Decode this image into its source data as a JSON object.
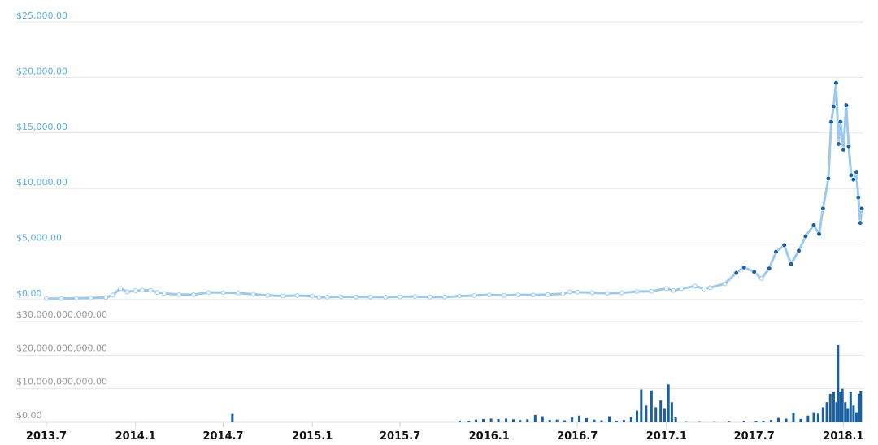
{
  "chart_data": [
    {
      "type": "line",
      "title": "",
      "xlabel": "",
      "ylabel": "",
      "ylim": [
        0,
        25000
      ],
      "grid": true,
      "y_tick_labels": [
        "$0.00",
        "$5,000.00",
        "$10,000.00",
        "$15,000.00",
        "$20,000.00",
        "$25,000.00"
      ],
      "y_ticks": [
        0,
        5000,
        10000,
        15000,
        20000,
        25000
      ],
      "line_color": "#9ec9ec",
      "marker_color": "#1a63a3",
      "points": [
        [
          "2013-07-01",
          90
        ],
        [
          "2013-08-01",
          100
        ],
        [
          "2013-09-01",
          130
        ],
        [
          "2013-10-01",
          150
        ],
        [
          "2013-11-01",
          200
        ],
        [
          "2013-11-15",
          420
        ],
        [
          "2013-12-01",
          1000
        ],
        [
          "2013-12-15",
          700
        ],
        [
          "2014-01-01",
          800
        ],
        [
          "2014-01-15",
          850
        ],
        [
          "2014-02-01",
          830
        ],
        [
          "2014-02-15",
          650
        ],
        [
          "2014-03-01",
          560
        ],
        [
          "2014-04-01",
          450
        ],
        [
          "2014-05-01",
          450
        ],
        [
          "2014-06-01",
          650
        ],
        [
          "2014-07-01",
          630
        ],
        [
          "2014-08-01",
          590
        ],
        [
          "2014-09-01",
          480
        ],
        [
          "2014-10-01",
          380
        ],
        [
          "2014-11-01",
          330
        ],
        [
          "2014-12-01",
          370
        ],
        [
          "2015-01-01",
          315
        ],
        [
          "2015-01-15",
          210
        ],
        [
          "2015-02-01",
          230
        ],
        [
          "2015-03-01",
          260
        ],
        [
          "2015-04-01",
          245
        ],
        [
          "2015-05-01",
          235
        ],
        [
          "2015-06-01",
          225
        ],
        [
          "2015-07-01",
          260
        ],
        [
          "2015-08-01",
          280
        ],
        [
          "2015-09-01",
          230
        ],
        [
          "2015-10-01",
          240
        ],
        [
          "2015-11-01",
          320
        ],
        [
          "2015-12-01",
          370
        ],
        [
          "2016-01-01",
          430
        ],
        [
          "2016-02-01",
          370
        ],
        [
          "2016-03-01",
          430
        ],
        [
          "2016-04-01",
          420
        ],
        [
          "2016-05-01",
          450
        ],
        [
          "2016-06-01",
          530
        ],
        [
          "2016-06-15",
          700
        ],
        [
          "2016-07-01",
          670
        ],
        [
          "2016-08-01",
          620
        ],
        [
          "2016-09-01",
          575
        ],
        [
          "2016-10-01",
          610
        ],
        [
          "2016-11-01",
          730
        ],
        [
          "2016-12-01",
          750
        ],
        [
          "2017-01-01",
          1000
        ],
        [
          "2017-01-15",
          820
        ],
        [
          "2017-02-01",
          990
        ],
        [
          "2017-03-01",
          1220
        ],
        [
          "2017-03-20",
          970
        ],
        [
          "2017-04-01",
          1080
        ],
        [
          "2017-05-01",
          1420
        ],
        [
          "2017-05-25",
          2400
        ],
        [
          "2017-06-10",
          2900
        ],
        [
          "2017-07-01",
          2500
        ],
        [
          "2017-07-16",
          1900
        ],
        [
          "2017-08-01",
          2800
        ],
        [
          "2017-08-15",
          4300
        ],
        [
          "2017-09-01",
          4900
        ],
        [
          "2017-09-15",
          3200
        ],
        [
          "2017-10-01",
          4400
        ],
        [
          "2017-10-15",
          5700
        ],
        [
          "2017-11-01",
          6700
        ],
        [
          "2017-11-12",
          5900
        ],
        [
          "2017-11-20",
          8200
        ],
        [
          "2017-12-01",
          10900
        ],
        [
          "2017-12-07",
          16000
        ],
        [
          "2017-12-12",
          17400
        ],
        [
          "2017-12-17",
          19500
        ],
        [
          "2017-12-22",
          14000
        ],
        [
          "2017-12-26",
          16000
        ],
        [
          "2018-01-01",
          13500
        ],
        [
          "2018-01-07",
          17500
        ],
        [
          "2018-01-12",
          13800
        ],
        [
          "2018-01-17",
          11200
        ],
        [
          "2018-01-22",
          10800
        ],
        [
          "2018-01-28",
          11500
        ],
        [
          "2018-02-01",
          9200
        ],
        [
          "2018-02-05",
          6900
        ],
        [
          "2018-02-08",
          8200
        ]
      ]
    },
    {
      "type": "bar",
      "title": "",
      "xlabel": "",
      "ylabel": "",
      "ylim": [
        0,
        30000000000
      ],
      "grid": true,
      "y_tick_labels": [
        "$0.00",
        "$10,000,000,000.00",
        "$20,000,000,000.00",
        "$30,000,000,000.00"
      ],
      "y_ticks": [
        0,
        10000000000,
        20000000000,
        30000000000
      ],
      "bar_color": "#1a5f9e",
      "x_tick_labels": [
        "2013.7",
        "2014.1",
        "2014.7",
        "2015.1",
        "2015.7",
        "2016.1",
        "2016.7",
        "2017.1",
        "2017.7",
        "2018.1"
      ],
      "x_ticks": [
        "2013-07-01",
        "2014-01-01",
        "2014-07-01",
        "2015-01-01",
        "2015-07-01",
        "2016-01-01",
        "2016-07-01",
        "2017-01-01",
        "2017-07-01",
        "2018-01-01"
      ],
      "points": [
        [
          "2014-07-20",
          2500000000
        ],
        [
          "2015-11-01",
          500000000
        ],
        [
          "2015-11-20",
          300000000
        ],
        [
          "2015-12-05",
          800000000
        ],
        [
          "2015-12-20",
          1000000000
        ],
        [
          "2016-01-05",
          1100000000
        ],
        [
          "2016-01-20",
          1000000000
        ],
        [
          "2016-02-05",
          1100000000
        ],
        [
          "2016-02-20",
          900000000
        ],
        [
          "2016-03-05",
          700000000
        ],
        [
          "2016-03-20",
          900000000
        ],
        [
          "2016-04-05",
          2200000000
        ],
        [
          "2016-04-20",
          1800000000
        ],
        [
          "2016-05-05",
          700000000
        ],
        [
          "2016-05-20",
          800000000
        ],
        [
          "2016-06-05",
          600000000
        ],
        [
          "2016-06-20",
          1500000000
        ],
        [
          "2016-07-05",
          2000000000
        ],
        [
          "2016-07-20",
          1200000000
        ],
        [
          "2016-08-05",
          800000000
        ],
        [
          "2016-08-20",
          600000000
        ],
        [
          "2016-09-05",
          1800000000
        ],
        [
          "2016-09-20",
          500000000
        ],
        [
          "2016-10-05",
          700000000
        ],
        [
          "2016-10-20",
          1500000000
        ],
        [
          "2016-11-01",
          3500000000
        ],
        [
          "2016-11-10",
          9800000000
        ],
        [
          "2016-11-20",
          5000000000
        ],
        [
          "2016-12-01",
          9500000000
        ],
        [
          "2016-12-10",
          4500000000
        ],
        [
          "2016-12-20",
          6500000000
        ],
        [
          "2016-12-28",
          4000000000
        ],
        [
          "2017-01-05",
          11300000000
        ],
        [
          "2017-01-12",
          6000000000
        ],
        [
          "2017-01-20",
          1500000000
        ],
        [
          "2017-02-10",
          100000000
        ],
        [
          "2017-03-10",
          100000000
        ],
        [
          "2017-04-10",
          100000000
        ],
        [
          "2017-05-10",
          200000000
        ],
        [
          "2017-06-10",
          500000000
        ],
        [
          "2017-07-05",
          300000000
        ],
        [
          "2017-07-20",
          500000000
        ],
        [
          "2017-08-05",
          700000000
        ],
        [
          "2017-08-20",
          1300000000
        ],
        [
          "2017-09-05",
          1100000000
        ],
        [
          "2017-09-20",
          2800000000
        ],
        [
          "2017-10-05",
          1000000000
        ],
        [
          "2017-10-20",
          2000000000
        ],
        [
          "2017-11-01",
          3000000000
        ],
        [
          "2017-11-10",
          2600000000
        ],
        [
          "2017-11-20",
          4500000000
        ],
        [
          "2017-11-28",
          6000000000
        ],
        [
          "2017-12-05",
          8500000000
        ],
        [
          "2017-12-12",
          9000000000
        ],
        [
          "2017-12-18",
          6000000000
        ],
        [
          "2017-12-21",
          23000000000
        ],
        [
          "2017-12-26",
          9000000000
        ],
        [
          "2017-12-30",
          10000000000
        ],
        [
          "2018-01-05",
          6000000000
        ],
        [
          "2018-01-10",
          4000000000
        ],
        [
          "2018-01-16",
          9000000000
        ],
        [
          "2018-01-22",
          5000000000
        ],
        [
          "2018-01-28",
          3000000000
        ],
        [
          "2018-02-02",
          8500000000
        ],
        [
          "2018-02-06",
          9300000000
        ]
      ]
    }
  ]
}
